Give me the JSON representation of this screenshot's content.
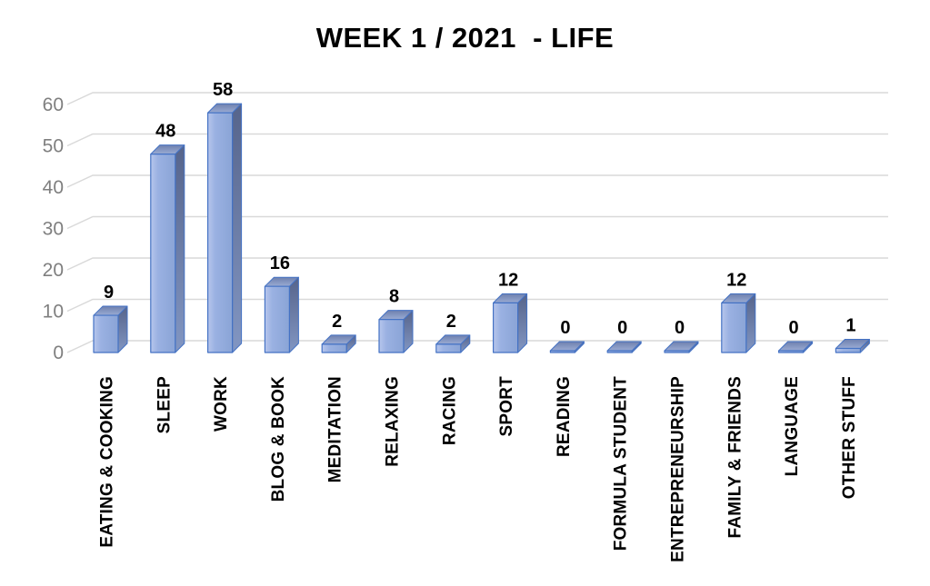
{
  "chart_data": {
    "type": "bar",
    "variant": "3d-bar",
    "title": "WEEK 1 / 2021  - LIFE",
    "categories": [
      "EATING & COOKING",
      "SLEEP",
      "WORK",
      "BLOG & BOOK",
      "MEDITATION",
      "RELAXING",
      "RACING",
      "SPORT",
      "READING",
      "FORMULA STUDENT",
      "ENTREPRENEURSHIP",
      "FAMILY & FRIENDS",
      "LANGUAGE",
      "OTHER STUFF"
    ],
    "values": [
      9,
      48,
      58,
      16,
      2,
      8,
      2,
      12,
      0,
      0,
      0,
      12,
      0,
      1
    ],
    "yticks": [
      0,
      10,
      20,
      30,
      40,
      50,
      60
    ],
    "ylim": [
      0,
      60
    ],
    "xlabel": "",
    "ylabel": "",
    "grid": true,
    "legend": "none",
    "colors": {
      "bar_front": "#8AA4D6",
      "bar_front_mid": "#9AB1E2",
      "bar_front_light": "#B7C6EC",
      "bar_top_dark": "#6E80AE",
      "bar_top_light": "#9AABD3",
      "bar_side_dark": "#56648B",
      "bar_side_light": "#8296C2",
      "bar_border": "#4472C4",
      "gridline": "#D9D9D9",
      "tick_label_text": "#7F7F7F",
      "value_label_text": "#000000",
      "title_text": "#000000",
      "background": "#FFFFFF"
    }
  }
}
